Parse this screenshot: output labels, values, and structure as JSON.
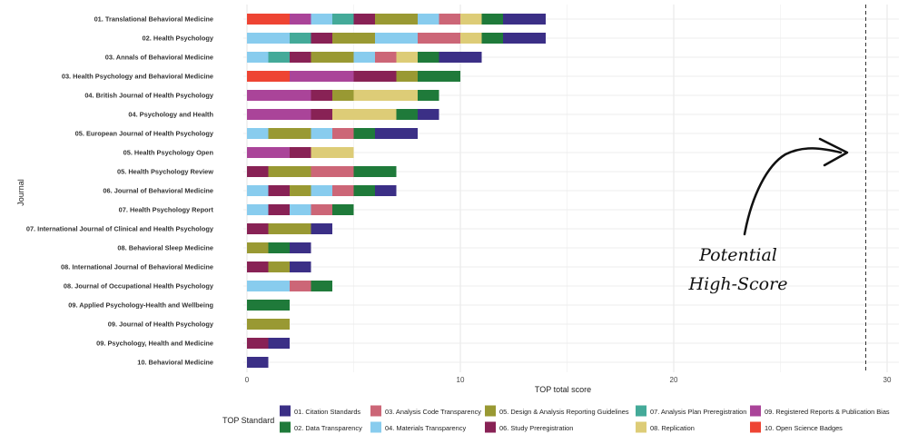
{
  "chart_data": {
    "type": "bar",
    "orientation": "horizontal",
    "stacked": true,
    "xlabel": "TOP total score",
    "ylabel": "Journal",
    "xlim": [
      0,
      30
    ],
    "xticks": [
      0,
      10,
      20,
      30
    ],
    "grid": true,
    "legend_title": "TOP Standard",
    "legend_position": "bottom",
    "potential_high_score": 29,
    "annotation": [
      "Potential",
      "High-Score"
    ],
    "categories": [
      "01. Translational Behavioral Medicine",
      "02. Health Psychology",
      "03. Annals of Behavioral Medicine",
      "03. Health Psychology and Behavioral Medicine",
      "04. British Journal of Health Psychology",
      "04. Psychology and Health",
      "05. European Journal of Health Psychology",
      "05. Health Psychology Open",
      "05. Health Psychology Review",
      "06. Journal of Behavioral Medicine",
      "07. Health Psychology Report",
      "07. International Journal of Clinical and Health Psychology",
      "08. Behavioral Sleep Medicine",
      "08. International Journal of Behavioral Medicine",
      "08. Journal of Occupational Health Psychology",
      "09. Applied Psychology-Health and Wellbeing",
      "09. Journal of Health Psychology",
      "09. Psychology, Health and Medicine",
      "10. Behavioral Medicine"
    ],
    "stack_order": [
      "10",
      "09",
      "04",
      "07",
      "06",
      "05",
      "04m",
      "03",
      "08",
      "02",
      "01"
    ],
    "series": [
      {
        "key": "01",
        "name": "01. Citation Standards",
        "color": "#3b2f86",
        "values": [
          2,
          2,
          2,
          0,
          0,
          1,
          2,
          0,
          0,
          1,
          0,
          1,
          1,
          1,
          0,
          0,
          0,
          1,
          1
        ]
      },
      {
        "key": "02",
        "name": "02. Data Transparency",
        "color": "#1f7a3a",
        "values": [
          1,
          1,
          1,
          2,
          1,
          1,
          1,
          0,
          2,
          1,
          1,
          0,
          1,
          0,
          1,
          2,
          0,
          0,
          0
        ]
      },
      {
        "key": "03",
        "name": "03. Analysis Code Transparency",
        "color": "#cc6677",
        "values": [
          1,
          2,
          1,
          0,
          0,
          0,
          1,
          0,
          2,
          1,
          1,
          0,
          0,
          0,
          1,
          0,
          0,
          0,
          0
        ]
      },
      {
        "key": "04",
        "name": "04. Materials Transparency",
        "color": "#88ccee",
        "values": [
          1,
          2,
          1,
          0,
          0,
          0,
          1,
          0,
          0,
          1,
          1,
          0,
          0,
          0,
          1,
          0,
          0,
          0,
          0
        ]
      },
      {
        "key": "05",
        "name": "05. Design & Analysis Reporting Guidelines",
        "color": "#999933",
        "values": [
          2,
          2,
          2,
          1,
          1,
          0,
          2,
          0,
          2,
          1,
          0,
          2,
          1,
          1,
          0,
          0,
          2,
          0,
          0
        ]
      },
      {
        "key": "06",
        "name": "06. Study Preregistration",
        "color": "#882255",
        "values": [
          1,
          1,
          1,
          2,
          1,
          1,
          0,
          1,
          1,
          1,
          1,
          1,
          0,
          1,
          0,
          0,
          0,
          1,
          0
        ]
      },
      {
        "key": "07",
        "name": "07. Analysis Plan Preregistration",
        "color": "#44aa99",
        "values": [
          1,
          1,
          1,
          0,
          0,
          0,
          0,
          0,
          0,
          0,
          0,
          0,
          0,
          0,
          0,
          0,
          0,
          0,
          0
        ]
      },
      {
        "key": "08",
        "name": "08. Replication",
        "color": "#ddcc77",
        "values": [
          1,
          1,
          1,
          0,
          3,
          3,
          0,
          2,
          0,
          0,
          0,
          0,
          0,
          0,
          0,
          0,
          0,
          0,
          0
        ]
      },
      {
        "key": "09",
        "name": "09. Registered Reports & Publication Bias",
        "color": "#aa4499",
        "values": [
          1,
          0,
          0,
          3,
          3,
          3,
          0,
          2,
          0,
          0,
          0,
          0,
          0,
          0,
          0,
          0,
          0,
          0,
          0
        ]
      },
      {
        "key": "10",
        "name": "10. Open Science Badges",
        "color": "#ee4433",
        "values": [
          2,
          0,
          0,
          2,
          0,
          0,
          0,
          0,
          0,
          0,
          0,
          0,
          0,
          0,
          0,
          0,
          0,
          0,
          0
        ]
      }
    ]
  }
}
